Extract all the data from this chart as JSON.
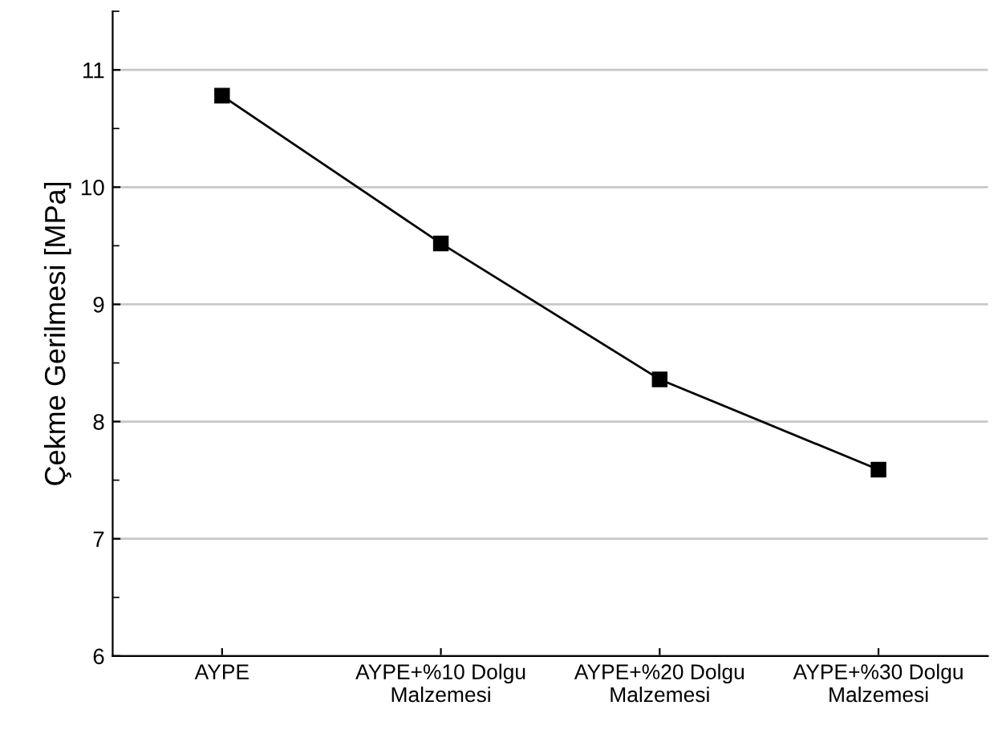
{
  "chart_data": {
    "type": "line",
    "ylabel": "Çekme Gerilmesi [MPa]",
    "categories": [
      "AYPE",
      "AYPE+%10 Dolgu\nMalzemesi",
      "AYPE+%20 Dolgu\nMalzemesi",
      "AYPE+%30 Dolgu\nMalzemesi"
    ],
    "series": [
      {
        "color": "#000000",
        "values": [
          10.78,
          9.52,
          8.36,
          7.59
        ]
      }
    ],
    "ylim": [
      6,
      11.5
    ],
    "yticks": [
      6,
      7,
      8,
      9,
      10,
      11
    ],
    "grid": "y",
    "marker": "square",
    "line_style": "solid",
    "legend": false
  }
}
